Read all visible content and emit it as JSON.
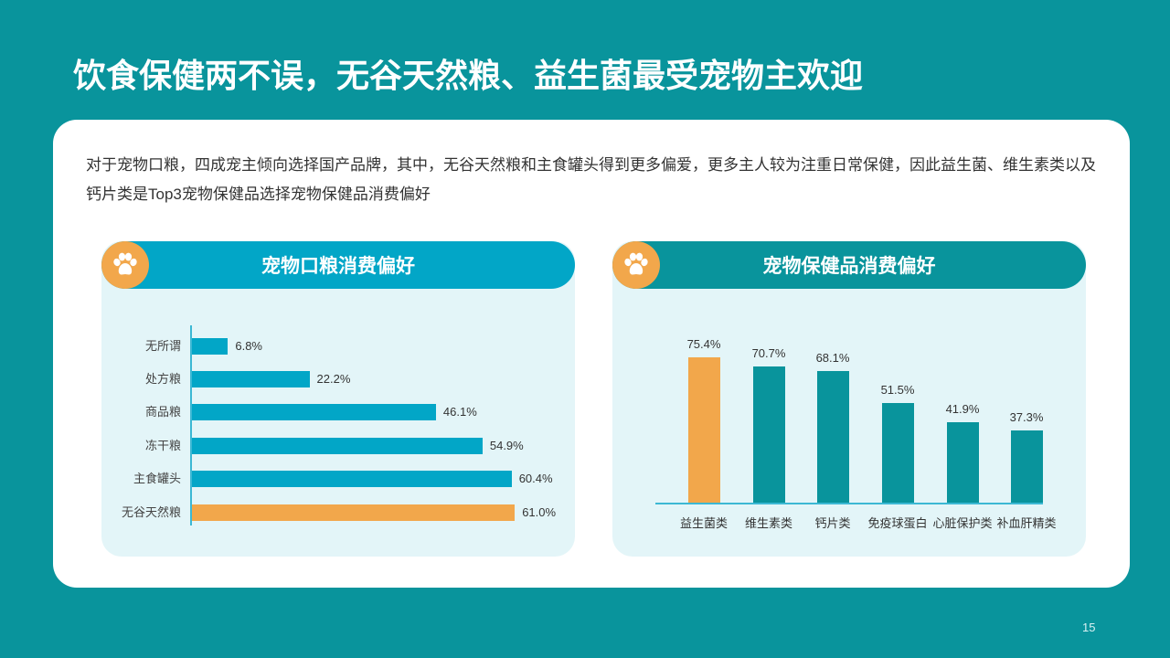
{
  "page": {
    "title": "饮食保健两不误，无谷天然粮、益生菌最受宠物主欢迎",
    "summary": "对于宠物口粮，四成宠主倾向选择国产品牌，其中，无谷天然粮和主食罐头得到更多偏爱，更多主人较为注重日常保健，因此益生菌、维生素类以及钙片类是Top3宠物保健品选择宠物保健品消费偏好",
    "page_number": "15"
  },
  "colors": {
    "background": "#09949c",
    "left_header": "#02a6c7",
    "right_header": "#09949c",
    "highlight": "#f2a74b",
    "panel_bg": "#e3f5f8",
    "bar_blue": "#02a6c7",
    "bar_teal": "#09949c"
  },
  "panels": {
    "left": {
      "title": "宠物口粮消费偏好",
      "icon": "paw-icon"
    },
    "right": {
      "title": "宠物保健品消费偏好",
      "icon": "paw-icon"
    }
  },
  "chart_data": [
    {
      "type": "bar",
      "orientation": "horizontal",
      "title": "宠物口粮消费偏好",
      "categories": [
        "无所谓",
        "处方粮",
        "商品粮",
        "冻干粮",
        "主食罐头",
        "无谷天然粮"
      ],
      "values": [
        6.8,
        22.2,
        46.1,
        54.9,
        60.4,
        61.0
      ],
      "labels": [
        "6.8%",
        "22.2%",
        "46.1%",
        "54.9%",
        "60.4%",
        "61.0%"
      ],
      "highlight_index": 5,
      "unit": "%",
      "xlabel": "",
      "ylabel": "",
      "grid": false
    },
    {
      "type": "bar",
      "orientation": "vertical",
      "title": "宠物保健品消费偏好",
      "categories": [
        "益生菌类",
        "维生素类",
        "钙片类",
        "免疫球蛋白",
        "心脏保护类",
        "补血肝精类"
      ],
      "values": [
        75.4,
        70.7,
        68.1,
        51.5,
        41.9,
        37.3
      ],
      "labels": [
        "75.4%",
        "70.7%",
        "68.1%",
        "51.5%",
        "41.9%",
        "37.3%"
      ],
      "highlight_index": 0,
      "unit": "%",
      "xlabel": "",
      "ylabel": "",
      "grid": false
    }
  ]
}
